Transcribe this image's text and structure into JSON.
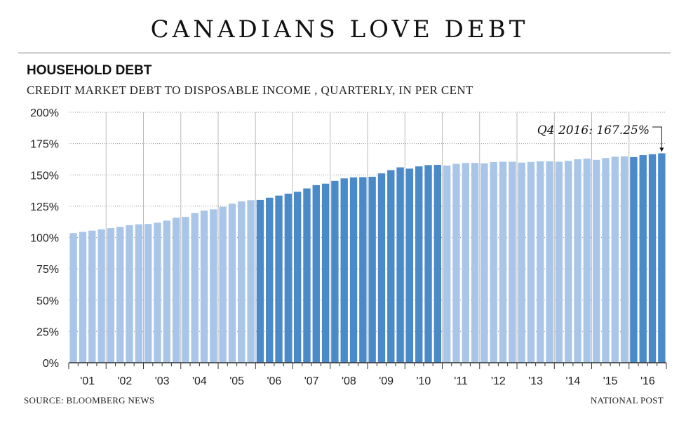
{
  "header": {
    "title": "CANADIANS LOVE DEBT",
    "section": "HOUSEHOLD DEBT",
    "subtitle": "CREDIT MARKET DEBT TO DISPOSABLE INCOME , QUARTERLY, IN PER CENT"
  },
  "footer": {
    "source": "SOURCE: BLOOMBERG NEWS",
    "credit": "NATIONAL POST"
  },
  "colors": {
    "light_bar": "#a9c6e8",
    "dark_bar": "#4a8ac9",
    "grid": "#999999",
    "text": "#222222"
  },
  "chart_data": {
    "type": "bar",
    "title": "CANADIANS LOVE DEBT",
    "subtitle": "CREDIT MARKET DEBT TO DISPOSABLE INCOME , QUARTERLY, IN PER CENT",
    "xlabel": "",
    "ylabel": "",
    "ylim": [
      0,
      200
    ],
    "y_ticks": [
      "0%",
      "25%",
      "50%",
      "75%",
      "100%",
      "125%",
      "150%",
      "175%",
      "200%"
    ],
    "grid": true,
    "year_labels": [
      "'01",
      "'02",
      "'03",
      "'04",
      "'05",
      "'06",
      "'07",
      "'08",
      "'09",
      "'10",
      "'11",
      "'12",
      "'13",
      "'14",
      "'15",
      "'16"
    ],
    "categories": [
      "2001 Q1",
      "2001 Q2",
      "2001 Q3",
      "2001 Q4",
      "2002 Q1",
      "2002 Q2",
      "2002 Q3",
      "2002 Q4",
      "2003 Q1",
      "2003 Q2",
      "2003 Q3",
      "2003 Q4",
      "2004 Q1",
      "2004 Q2",
      "2004 Q3",
      "2004 Q4",
      "2005 Q1",
      "2005 Q2",
      "2005 Q3",
      "2005 Q4",
      "2006 Q1",
      "2006 Q2",
      "2006 Q3",
      "2006 Q4",
      "2007 Q1",
      "2007 Q2",
      "2007 Q3",
      "2007 Q4",
      "2008 Q1",
      "2008 Q2",
      "2008 Q3",
      "2008 Q4",
      "2009 Q1",
      "2009 Q2",
      "2009 Q3",
      "2009 Q4",
      "2010 Q1",
      "2010 Q2",
      "2010 Q3",
      "2010 Q4",
      "2011 Q1",
      "2011 Q2",
      "2011 Q3",
      "2011 Q4",
      "2012 Q1",
      "2012 Q2",
      "2012 Q3",
      "2012 Q4",
      "2013 Q1",
      "2013 Q2",
      "2013 Q3",
      "2013 Q4",
      "2014 Q1",
      "2014 Q2",
      "2014 Q3",
      "2014 Q4",
      "2015 Q1",
      "2015 Q2",
      "2015 Q3",
      "2015 Q4",
      "2016 Q1",
      "2016 Q2",
      "2016 Q3",
      "2016 Q4"
    ],
    "values": [
      103.5,
      104.5,
      105.5,
      106.5,
      107.5,
      108.5,
      109.8,
      110.5,
      110.8,
      111.8,
      113.5,
      115.8,
      116.5,
      119.5,
      121.5,
      122.5,
      124.5,
      127,
      128.8,
      129.8,
      130,
      131.8,
      133.5,
      135,
      136.5,
      139.2,
      141.8,
      143,
      145.2,
      147.2,
      148,
      148.2,
      148.5,
      151.2,
      153.8,
      156,
      155,
      156.8,
      157.8,
      158,
      157.5,
      158.8,
      159.5,
      159.5,
      159.2,
      160.2,
      160.5,
      160.5,
      159.8,
      160.3,
      160.8,
      160.8,
      160.5,
      161.2,
      162.5,
      163,
      162,
      163.5,
      164.5,
      164.8,
      164.2,
      165.8,
      166.5,
      167.25
    ],
    "shading": "light bars for 2001–2005, 2011–2015; dark bars for 2006–2010, 2016",
    "annotations": [
      {
        "text": "Q4 2016: 167.25%",
        "target": "2016 Q4"
      }
    ]
  }
}
